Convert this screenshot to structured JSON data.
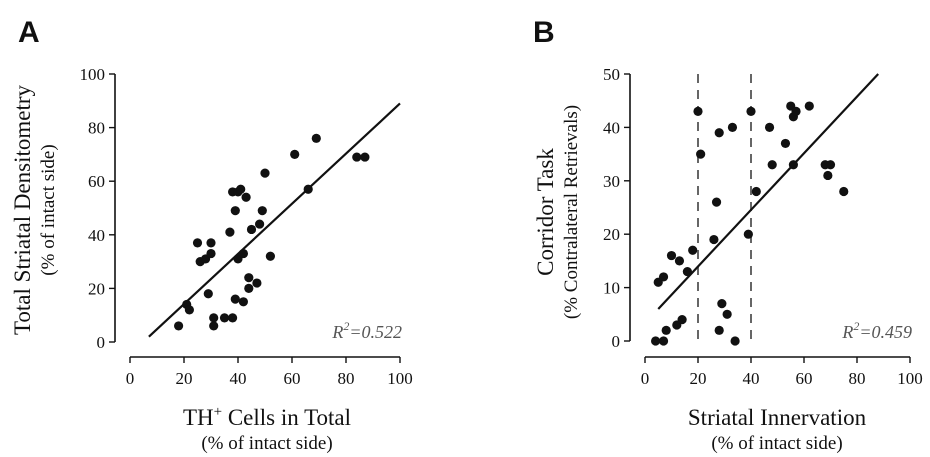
{
  "chart_data": [
    {
      "panel": "A",
      "type": "scatter",
      "ylabel": "Total Striatal Densitometry",
      "ylabel_sub": "(% of intact side)",
      "xlabel_main": "TH",
      "xlabel_sup": "+",
      "xlabel_rest": " Cells in Total",
      "xlabel_sub": "(% of intact side)",
      "xlim": [
        0,
        100
      ],
      "ylim": [
        0,
        100
      ],
      "xticks": [
        0,
        20,
        40,
        60,
        80,
        100
      ],
      "yticks": [
        0,
        20,
        40,
        60,
        80,
        100
      ],
      "xtick_labels": [
        "0",
        "20",
        "40",
        "60",
        "80",
        "100"
      ],
      "ytick_labels": [
        "0",
        "20",
        "40",
        "60",
        "80",
        "100"
      ],
      "r2_prefix": "R",
      "r2_sup": "2",
      "r2_value": "=0.522",
      "fit_line": [
        [
          7,
          2
        ],
        [
          100,
          89
        ]
      ],
      "points": [
        [
          18,
          6
        ],
        [
          21,
          14
        ],
        [
          22,
          12
        ],
        [
          25,
          37
        ],
        [
          26,
          30
        ],
        [
          28,
          31
        ],
        [
          29,
          18
        ],
        [
          30,
          33
        ],
        [
          30,
          37
        ],
        [
          31,
          6
        ],
        [
          31,
          9
        ],
        [
          35,
          9
        ],
        [
          37,
          41
        ],
        [
          38,
          9
        ],
        [
          38,
          56
        ],
        [
          39,
          49
        ],
        [
          39,
          16
        ],
        [
          40,
          31
        ],
        [
          40,
          56
        ],
        [
          41,
          57
        ],
        [
          42,
          33
        ],
        [
          42,
          15
        ],
        [
          43,
          54
        ],
        [
          44,
          24
        ],
        [
          44,
          20
        ],
        [
          45,
          42
        ],
        [
          47,
          22
        ],
        [
          48,
          44
        ],
        [
          49,
          49
        ],
        [
          50,
          63
        ],
        [
          52,
          32
        ],
        [
          61,
          70
        ],
        [
          66,
          57
        ],
        [
          69,
          76
        ],
        [
          84,
          69
        ],
        [
          87,
          69
        ]
      ]
    },
    {
      "panel": "B",
      "type": "scatter",
      "ylabel": "Corridor Task",
      "ylabel_sub": "(% Contralateral Retrievals)",
      "xlabel_main": "Striatal Innervation",
      "xlabel_sub": "(% of intact side)",
      "xlim": [
        0,
        100
      ],
      "ylim": [
        0,
        50
      ],
      "xticks": [
        0,
        20,
        40,
        60,
        80,
        100
      ],
      "yticks": [
        0,
        10,
        20,
        30,
        40,
        50
      ],
      "xtick_labels": [
        "0",
        "20",
        "40",
        "60",
        "80",
        "100"
      ],
      "ytick_labels": [
        "0",
        "10",
        "20",
        "30",
        "40",
        "50"
      ],
      "reference_x": [
        20,
        40
      ],
      "r2_prefix": "R",
      "r2_sup": "2",
      "r2_value": "=0.459",
      "fit_line": [
        [
          5,
          6
        ],
        [
          88,
          50
        ]
      ],
      "points": [
        [
          4,
          0
        ],
        [
          5,
          11
        ],
        [
          7,
          12
        ],
        [
          7,
          0
        ],
        [
          8,
          2
        ],
        [
          10,
          16
        ],
        [
          12,
          3
        ],
        [
          13,
          15
        ],
        [
          14,
          4
        ],
        [
          16,
          13
        ],
        [
          18,
          17
        ],
        [
          20,
          43
        ],
        [
          21,
          35
        ],
        [
          26,
          19
        ],
        [
          27,
          26
        ],
        [
          28,
          39
        ],
        [
          28,
          2
        ],
        [
          29,
          7
        ],
        [
          31,
          5
        ],
        [
          33,
          40
        ],
        [
          34,
          0
        ],
        [
          39,
          20
        ],
        [
          40,
          43
        ],
        [
          42,
          28
        ],
        [
          47,
          40
        ],
        [
          48,
          33
        ],
        [
          53,
          37
        ],
        [
          55,
          44
        ],
        [
          56,
          42
        ],
        [
          56,
          33
        ],
        [
          57,
          43
        ],
        [
          62,
          44
        ],
        [
          68,
          33
        ],
        [
          69,
          31
        ],
        [
          70,
          33
        ],
        [
          75,
          28
        ]
      ]
    }
  ]
}
